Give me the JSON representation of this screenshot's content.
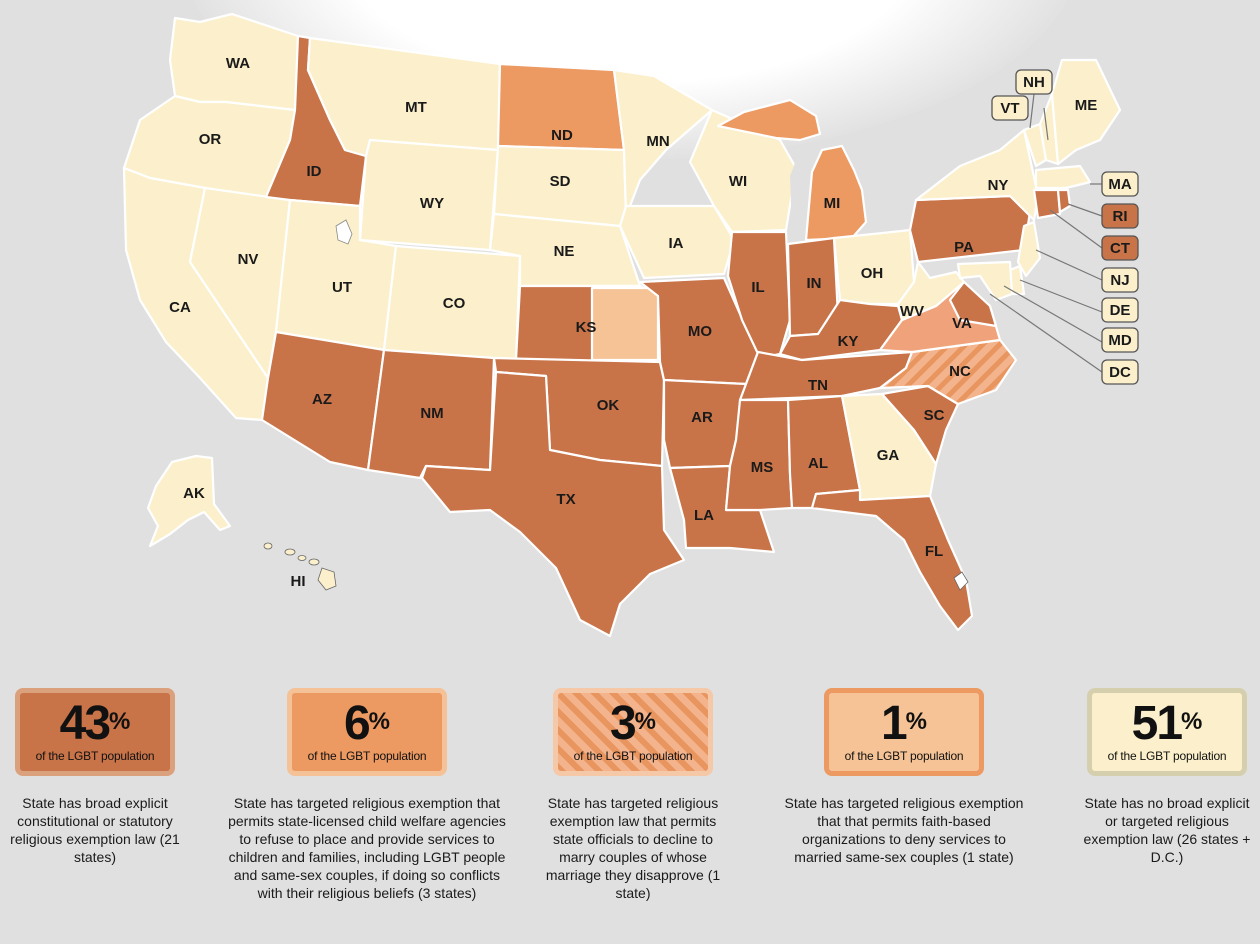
{
  "colors": {
    "broad": "#c87348",
    "child_welfare": "#ec9962",
    "officials": "#f0a37a",
    "faith_based": "#f5c396",
    "none": "#fbf0cb"
  },
  "states": {
    "WA": "WA",
    "OR": "OR",
    "CA": "CA",
    "NV": "NV",
    "ID": "ID",
    "MT": "MT",
    "WY": "WY",
    "UT": "UT",
    "CO": "CO",
    "AZ": "AZ",
    "NM": "NM",
    "ND": "ND",
    "SD": "SD",
    "NE": "NE",
    "KS": "KS",
    "OK": "OK",
    "TX": "TX",
    "MN": "MN",
    "IA": "IA",
    "MO": "MO",
    "AR": "AR",
    "LA": "LA",
    "WI": "WI",
    "IL": "IL",
    "MI": "MI",
    "IN": "IN",
    "OH": "OH",
    "KY": "KY",
    "TN": "TN",
    "MS": "MS",
    "AL": "AL",
    "GA": "GA",
    "FL": "FL",
    "SC": "SC",
    "NC": "NC",
    "VA": "VA",
    "WV": "WV",
    "PA": "PA",
    "NY": "NY",
    "ME": "ME",
    "AK": "AK",
    "HI": "HI"
  },
  "callouts": {
    "NH": "NH",
    "VT": "VT",
    "MA": "MA",
    "RI": "RI",
    "CT": "CT",
    "NJ": "NJ",
    "DE": "DE",
    "MD": "MD",
    "DC": "DC"
  },
  "legend": [
    {
      "pct": "43",
      "sub": "of the LGBT population",
      "desc": "State has broad explicit constitutional or statutory religious exemption law (21 states)"
    },
    {
      "pct": "6",
      "sub": "of the LGBT population",
      "desc": "State has targeted religious exemption that permits state-licensed child welfare agencies to refuse to place and provide services to children and families, including LGBT people and same-sex couples, if doing so conflicts with their religious beliefs (3 states)"
    },
    {
      "pct": "3",
      "sub": "of the LGBT population",
      "desc": "State has targeted religious exemption law that permits state officials to decline to marry couples of whose marriage they disapprove (1 state)"
    },
    {
      "pct": "1",
      "sub": "of the LGBT population",
      "desc": "State has targeted religious exemption that that permits faith-based organizations to deny services to married same-sex couples (1 state)"
    },
    {
      "pct": "51",
      "sub": "of the LGBT population",
      "desc": "State has no broad explicit or targeted religious exemption law (26 states + D.C.)"
    }
  ],
  "percent_sign": "%"
}
